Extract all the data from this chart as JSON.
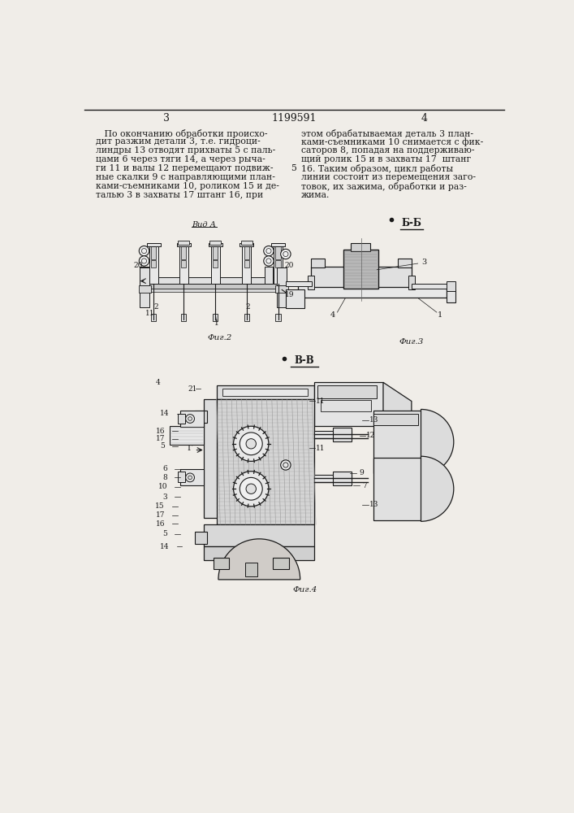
{
  "page_background": "#f0ede8",
  "text_color": "#1a1a1a",
  "line_color": "#1a1a1a",
  "page_number_left": "3",
  "page_number_center": "1199591",
  "page_number_right": "4",
  "col1_text": [
    "   По окончанию обработки происхо-",
    "дит разжим детали 3, т.е. гидроци-",
    "линдры 13 отводят прихваты 5 с паль-",
    "цами 6 через тяги 14, а через рыча-",
    "ги 11 и валы 12 перемещают подвиж-",
    "ные скалки 9 с направляющими план-",
    "ками-съемниками 10, роликом 15 и де-",
    "талью 3 в захваты 17 штанг 16, при"
  ],
  "col2_text": [
    "этом обрабатываемая деталь 3 план-",
    "ками-съемниками 10 снимается с фик-",
    "саторов 8, попадая на поддерживаю-",
    "щий ролик 15 и в захваты 17  штанг",
    "16. Таким образом, цикл работы",
    "линии состоит из перемещения заго-",
    "товок, их зажима, обработки и раз-",
    "жима."
  ],
  "col2_numeral": "5",
  "fig2_label": "Фиг.2",
  "fig3_label": "Фиг.3",
  "fig4_label": "Фиг.4",
  "vid_a_label": "Вид А",
  "b_b_label": "Б-Б",
  "v_v_label": "В-В"
}
